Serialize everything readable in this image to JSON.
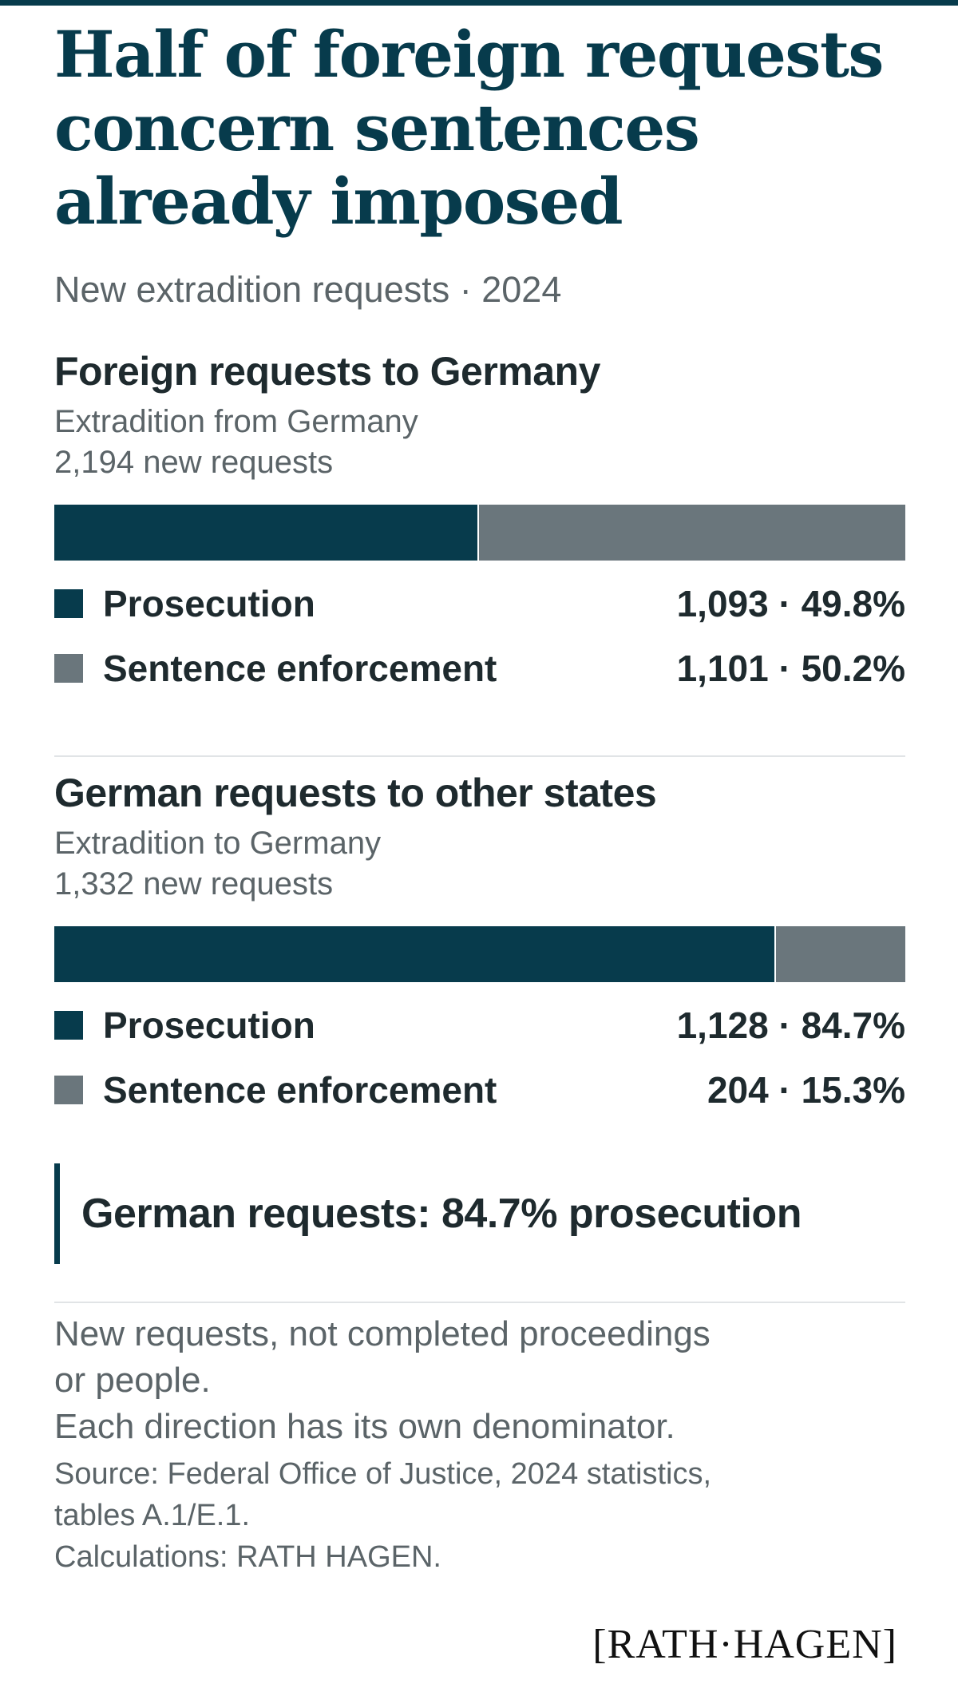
{
  "title": "Half of foreign requests concern sentences already imposed",
  "subtitle": "New extradition requests · 2024",
  "chart_data": [
    {
      "type": "bar",
      "title": "Foreign requests to Germany",
      "subtitle_line1": "Extradition from Germany",
      "subtitle_line2": "2,194 new requests",
      "total": 2194,
      "categories": [
        "Prosecution",
        "Sentence enforcement"
      ],
      "values": [
        1093,
        1101
      ],
      "percents": [
        49.8,
        50.2
      ],
      "labels": [
        "1,093 · 49.8%",
        "1,101 · 50.2%"
      ],
      "colors": [
        "#073b4c",
        "#6a767c"
      ],
      "stacked": true,
      "orientation": "horizontal"
    },
    {
      "type": "bar",
      "title": "German requests to other states",
      "subtitle_line1": "Extradition to Germany",
      "subtitle_line2": "1,332 new requests",
      "total": 1332,
      "categories": [
        "Prosecution",
        "Sentence enforcement"
      ],
      "values": [
        1128,
        204
      ],
      "percents": [
        84.7,
        15.3
      ],
      "labels": [
        "1,128 · 84.7%",
        "204 · 15.3%"
      ],
      "colors": [
        "#073b4c",
        "#6a767c"
      ],
      "stacked": true,
      "orientation": "horizontal"
    }
  ],
  "callout": "German requests: 84.7% prosecution",
  "notes": {
    "line1": "New requests, not completed proceedings",
    "line2": "or people.",
    "line3": "Each direction has its own denominator.",
    "source1": "Source: Federal Office of Justice, 2024 statistics,",
    "source2": "tables A.1/E.1.",
    "calc": "Calculations: RATH HAGEN."
  },
  "logo": "[RATH·HAGEN]",
  "colors": {
    "accent": "#073b4c",
    "secondary": "#6a767c",
    "text": "#1e2a2e",
    "muted": "#5b6468"
  }
}
